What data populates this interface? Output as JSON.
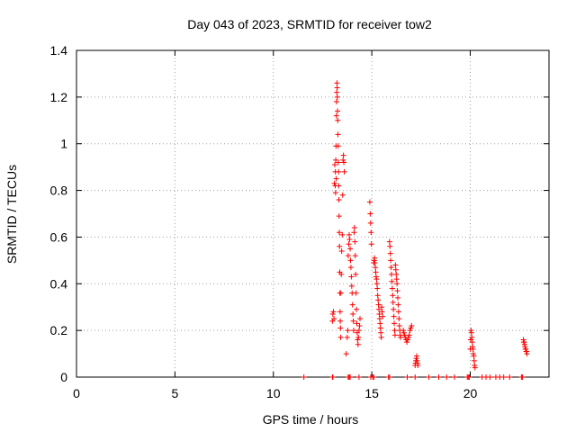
{
  "chart_data": {
    "type": "scatter",
    "title": "Day 043 of 2023, SRMTID for receiver tow2",
    "xlabel": "GPS time / hours",
    "ylabel": "SRMTID / TECUs",
    "xlim": [
      0,
      24
    ],
    "ylim": [
      0,
      1.4
    ],
    "xticks": [
      0,
      5,
      10,
      15,
      20
    ],
    "yticks": [
      0,
      0.2,
      0.4,
      0.6,
      0.8,
      1,
      1.2,
      1.4
    ],
    "xtick_labels": [
      "0",
      "5",
      "10",
      "15",
      "20"
    ],
    "ytick_labels": [
      "0",
      "0.2",
      "0.4",
      "0.6",
      "0.8",
      "1",
      "1.2",
      "1.4"
    ],
    "grid": true,
    "marker": "+",
    "color": "#ff0000",
    "series": [
      {
        "name": "tow2",
        "points": [
          [
            11.55,
            0.0
          ],
          [
            13.0,
            0.0
          ],
          [
            13.02,
            0.0
          ],
          [
            13.8,
            0.0
          ],
          [
            13.85,
            0.0
          ],
          [
            13.9,
            0.0
          ],
          [
            14.35,
            0.0
          ],
          [
            14.95,
            0.0
          ],
          [
            15.05,
            0.0
          ],
          [
            15.1,
            0.0
          ],
          [
            15.85,
            0.0
          ],
          [
            15.9,
            0.0
          ],
          [
            16.8,
            0.0
          ],
          [
            17.2,
            0.0
          ],
          [
            17.9,
            0.0
          ],
          [
            18.4,
            0.0
          ],
          [
            18.8,
            0.0
          ],
          [
            19.2,
            0.0
          ],
          [
            19.85,
            0.0
          ],
          [
            19.9,
            0.0
          ],
          [
            19.95,
            0.0
          ],
          [
            20.6,
            0.0
          ],
          [
            20.8,
            0.0
          ],
          [
            21.0,
            0.0
          ],
          [
            21.3,
            0.0
          ],
          [
            21.5,
            0.0
          ],
          [
            21.7,
            0.0
          ],
          [
            22.0,
            0.0
          ],
          [
            22.6,
            0.0
          ],
          [
            22.65,
            0.0
          ],
          [
            13.0,
            0.24
          ],
          [
            13.02,
            0.27
          ],
          [
            13.05,
            0.28
          ],
          [
            13.08,
            0.25
          ],
          [
            13.1,
            0.83
          ],
          [
            13.12,
            0.91
          ],
          [
            13.14,
            0.82
          ],
          [
            13.15,
            0.88
          ],
          [
            13.16,
            0.79
          ],
          [
            13.17,
            0.93
          ],
          [
            13.18,
            0.99
          ],
          [
            13.19,
            0.85
          ],
          [
            13.2,
            1.12
          ],
          [
            13.21,
            1.18
          ],
          [
            13.22,
            1.22
          ],
          [
            13.23,
            1.26
          ],
          [
            13.24,
            1.24
          ],
          [
            13.25,
            1.2
          ],
          [
            13.26,
            1.14
          ],
          [
            13.27,
            1.1
          ],
          [
            13.28,
            1.04
          ],
          [
            13.29,
            0.99
          ],
          [
            13.3,
            0.92
          ],
          [
            13.31,
            0.88
          ],
          [
            13.32,
            0.82
          ],
          [
            13.33,
            0.76
          ],
          [
            13.34,
            0.69
          ],
          [
            13.35,
            0.62
          ],
          [
            13.36,
            0.56
          ],
          [
            13.37,
            0.45
          ],
          [
            13.38,
            0.36
          ],
          [
            13.39,
            0.28
          ],
          [
            13.4,
            0.24
          ],
          [
            13.41,
            0.21
          ],
          [
            13.42,
            0.17
          ],
          [
            13.43,
            0.36
          ],
          [
            13.45,
            0.44
          ],
          [
            13.47,
            0.54
          ],
          [
            13.5,
            0.61
          ],
          [
            13.52,
            0.78
          ],
          [
            13.54,
            0.93
          ],
          [
            13.56,
            0.95
          ],
          [
            13.58,
            0.92
          ],
          [
            13.6,
            0.88
          ],
          [
            13.8,
            0.52
          ],
          [
            13.83,
            0.57
          ],
          [
            13.85,
            0.61
          ],
          [
            13.87,
            0.59
          ],
          [
            13.9,
            0.55
          ],
          [
            13.92,
            0.5
          ],
          [
            13.94,
            0.47
          ],
          [
            13.96,
            0.43
          ],
          [
            13.98,
            0.39
          ],
          [
            14.0,
            0.36
          ],
          [
            14.02,
            0.31
          ],
          [
            14.04,
            0.27
          ],
          [
            14.06,
            0.24
          ],
          [
            14.08,
            0.2
          ],
          [
            14.1,
            0.62
          ],
          [
            14.12,
            0.64
          ],
          [
            14.14,
            0.58
          ],
          [
            14.16,
            0.52
          ],
          [
            14.18,
            0.44
          ],
          [
            14.2,
            0.36
          ],
          [
            14.22,
            0.29
          ],
          [
            14.24,
            0.23
          ],
          [
            14.26,
            0.19
          ],
          [
            14.28,
            0.16
          ],
          [
            14.3,
            0.14
          ],
          [
            14.32,
            0.17
          ],
          [
            14.35,
            0.2
          ],
          [
            14.38,
            0.22
          ],
          [
            14.4,
            0.25
          ],
          [
            13.7,
            0.1
          ],
          [
            13.75,
            0.17
          ],
          [
            13.78,
            0.2
          ],
          [
            14.9,
            0.75
          ],
          [
            14.92,
            0.7
          ],
          [
            14.94,
            0.66
          ],
          [
            14.96,
            0.62
          ],
          [
            14.98,
            0.57
          ],
          [
            15.1,
            0.49
          ],
          [
            15.12,
            0.5
          ],
          [
            15.14,
            0.51
          ],
          [
            15.16,
            0.49
          ],
          [
            15.18,
            0.47
          ],
          [
            15.2,
            0.45
          ],
          [
            15.22,
            0.43
          ],
          [
            15.24,
            0.42
          ],
          [
            15.26,
            0.4
          ],
          [
            15.28,
            0.38
          ],
          [
            15.3,
            0.35
          ],
          [
            15.32,
            0.33
          ],
          [
            15.34,
            0.31
          ],
          [
            15.36,
            0.29
          ],
          [
            15.38,
            0.27
          ],
          [
            15.4,
            0.25
          ],
          [
            15.42,
            0.23
          ],
          [
            15.44,
            0.21
          ],
          [
            15.46,
            0.19
          ],
          [
            15.48,
            0.17
          ],
          [
            15.5,
            0.3
          ],
          [
            15.52,
            0.28
          ],
          [
            15.55,
            0.26
          ],
          [
            15.9,
            0.58
          ],
          [
            15.92,
            0.56
          ],
          [
            15.94,
            0.53
          ],
          [
            15.96,
            0.5
          ],
          [
            15.98,
            0.47
          ],
          [
            16.0,
            0.44
          ],
          [
            16.02,
            0.41
          ],
          [
            16.04,
            0.38
          ],
          [
            16.06,
            0.35
          ],
          [
            16.08,
            0.32
          ],
          [
            16.1,
            0.29
          ],
          [
            16.12,
            0.26
          ],
          [
            16.14,
            0.23
          ],
          [
            16.16,
            0.2
          ],
          [
            16.18,
            0.18
          ],
          [
            16.2,
            0.48
          ],
          [
            16.22,
            0.46
          ],
          [
            16.24,
            0.44
          ],
          [
            16.26,
            0.42
          ],
          [
            16.28,
            0.4
          ],
          [
            16.3,
            0.37
          ],
          [
            16.32,
            0.34
          ],
          [
            16.34,
            0.31
          ],
          [
            16.36,
            0.28
          ],
          [
            16.38,
            0.25
          ],
          [
            16.4,
            0.22
          ],
          [
            16.42,
            0.2
          ],
          [
            16.44,
            0.18
          ],
          [
            16.46,
            0.17
          ],
          [
            16.6,
            0.2
          ],
          [
            16.63,
            0.19
          ],
          [
            16.66,
            0.18
          ],
          [
            16.7,
            0.17
          ],
          [
            16.74,
            0.16
          ],
          [
            16.78,
            0.15
          ],
          [
            16.82,
            0.16
          ],
          [
            16.86,
            0.17
          ],
          [
            16.9,
            0.18
          ],
          [
            16.94,
            0.2
          ],
          [
            16.98,
            0.21
          ],
          [
            17.02,
            0.22
          ],
          [
            17.2,
            0.05
          ],
          [
            17.22,
            0.06
          ],
          [
            17.24,
            0.07
          ],
          [
            17.26,
            0.08
          ],
          [
            17.28,
            0.09
          ],
          [
            17.3,
            0.07
          ],
          [
            17.32,
            0.06
          ],
          [
            17.34,
            0.05
          ],
          [
            20.0,
            0.12
          ],
          [
            20.02,
            0.16
          ],
          [
            20.04,
            0.2
          ],
          [
            20.06,
            0.19
          ],
          [
            20.08,
            0.17
          ],
          [
            20.1,
            0.15
          ],
          [
            20.12,
            0.13
          ],
          [
            20.14,
            0.12
          ],
          [
            20.16,
            0.1
          ],
          [
            20.18,
            0.09
          ],
          [
            20.2,
            0.07
          ],
          [
            20.22,
            0.05
          ],
          [
            20.24,
            0.04
          ],
          [
            22.7,
            0.16
          ],
          [
            22.72,
            0.15
          ],
          [
            22.74,
            0.15
          ],
          [
            22.76,
            0.14
          ],
          [
            22.78,
            0.13
          ],
          [
            22.8,
            0.12
          ],
          [
            22.82,
            0.12
          ],
          [
            22.84,
            0.11
          ],
          [
            22.86,
            0.11
          ],
          [
            22.88,
            0.1
          ]
        ]
      }
    ]
  }
}
